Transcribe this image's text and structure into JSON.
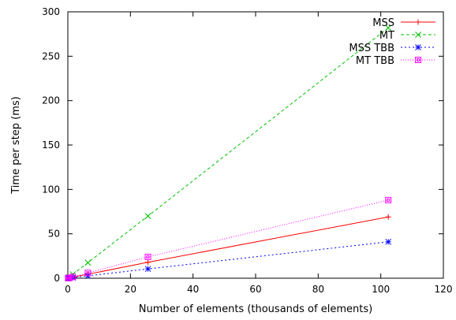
{
  "chart_data": {
    "type": "line",
    "title": "",
    "xlabel": "Number of elements (thousands of elements)",
    "ylabel": "Time per step (ms)",
    "xlim": [
      0,
      120
    ],
    "ylim": [
      0,
      300
    ],
    "xticks": [
      0,
      20,
      40,
      60,
      80,
      100,
      120
    ],
    "yticks": [
      0,
      50,
      100,
      150,
      200,
      250,
      300
    ],
    "grid": false,
    "legend_position": "top-right",
    "series": [
      {
        "name": "MSS",
        "color": "#ff0000",
        "dash": "none",
        "marker": "plus",
        "x": [
          0.1,
          0.4,
          1.6,
          6.4,
          25.6,
          102.4
        ],
        "y": [
          0.1,
          0.3,
          1.2,
          4.5,
          18,
          69
        ]
      },
      {
        "name": "MT",
        "color": "#00c000",
        "dash": "4,3",
        "marker": "cross",
        "x": [
          0.1,
          0.4,
          1.6,
          6.4,
          25.6,
          102.4
        ],
        "y": [
          0.3,
          1.2,
          4.5,
          17.5,
          70,
          282
        ]
      },
      {
        "name": "MSS TBB",
        "color": "#0000ff",
        "dash": "2,3",
        "marker": "star",
        "x": [
          0.1,
          0.4,
          1.6,
          6.4,
          25.6,
          102.4
        ],
        "y": [
          0.1,
          0.2,
          0.7,
          2.7,
          10.5,
          41
        ]
      },
      {
        "name": "MT TBB",
        "color": "#ff00ff",
        "dash": "1,2",
        "marker": "box",
        "x": [
          0.1,
          0.4,
          1.6,
          6.4,
          25.6,
          102.4
        ],
        "y": [
          0.1,
          0.4,
          1.5,
          6,
          24,
          88
        ]
      }
    ]
  }
}
